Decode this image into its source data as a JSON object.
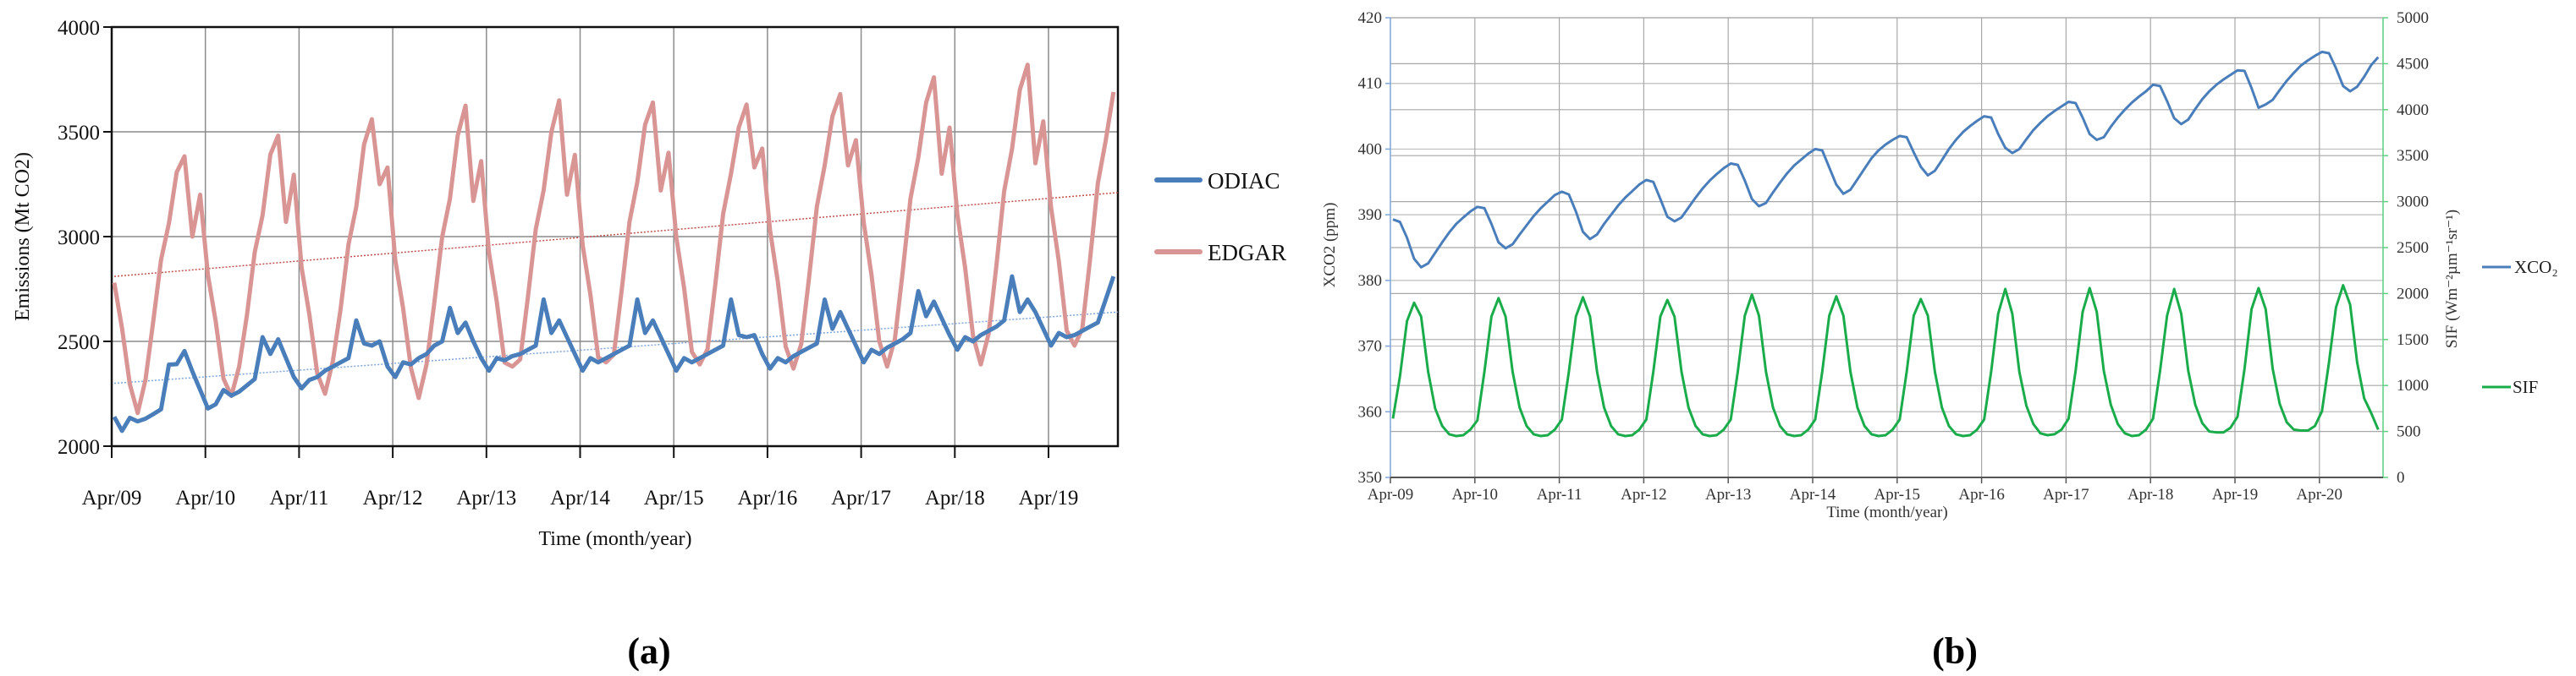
{
  "chart_data": [
    {
      "id": "a",
      "type": "line",
      "panel_label": "(a)",
      "title": "",
      "xlabel": "Time (month/year)",
      "ylabel": "Emissions (Mt CO2)",
      "ylim": [
        2000,
        4000
      ],
      "yticks": [
        2000,
        2500,
        3000,
        3500,
        4000
      ],
      "ytick_labels": [
        "2000",
        "2500",
        "3000",
        "3500",
        "4000"
      ],
      "xtick_labels": [
        "Apr/09",
        "Apr/10",
        "Apr/11",
        "Apr/12",
        "Apr/13",
        "Apr/14",
        "Apr/15",
        "Apr/16",
        "Apr/17",
        "Apr/18",
        "Apr/19"
      ],
      "x_start": "Apr 2009",
      "x_step": "1 month",
      "grid": true,
      "legend_position": "right",
      "series": [
        {
          "name": "ODIAC",
          "color": "#4a7ebb",
          "trendline": {
            "start": 2300,
            "end": 2640,
            "style": "dotted"
          },
          "values": [
            2140,
            2073,
            2135,
            2118,
            2131,
            2153,
            2176,
            2389,
            2391,
            2454,
            2357,
            2269,
            2180,
            2200,
            2268,
            2241,
            2260,
            2290,
            2320,
            2520,
            2440,
            2510,
            2420,
            2330,
            2276,
            2316,
            2330,
            2360,
            2380,
            2400,
            2420,
            2600,
            2490,
            2480,
            2500,
            2380,
            2330,
            2400,
            2390,
            2420,
            2440,
            2480,
            2500,
            2660,
            2540,
            2590,
            2500,
            2420,
            2360,
            2420,
            2410,
            2430,
            2440,
            2460,
            2480,
            2700,
            2540,
            2600,
            2520,
            2440,
            2360,
            2420,
            2400,
            2420,
            2440,
            2460,
            2480,
            2700,
            2540,
            2600,
            2520,
            2440,
            2360,
            2420,
            2400,
            2420,
            2440,
            2460,
            2480,
            2700,
            2530,
            2520,
            2530,
            2440,
            2370,
            2420,
            2400,
            2430,
            2450,
            2470,
            2490,
            2700,
            2560,
            2640,
            2560,
            2480,
            2400,
            2460,
            2440,
            2470,
            2490,
            2510,
            2540,
            2740,
            2620,
            2690,
            2610,
            2530,
            2460,
            2520,
            2500,
            2530,
            2550,
            2570,
            2600,
            2810,
            2640,
            2700,
            2640,
            2560,
            2480,
            2540,
            2520,
            2530,
            2550,
            2570,
            2590,
            2700,
            2810
          ]
        },
        {
          "name": "EDGAR",
          "color": "#d99594",
          "trendline": {
            "start": 2810,
            "end": 3210,
            "style": "dotted"
          },
          "values": [
            2780,
            2563,
            2296,
            2158,
            2316,
            2596,
            2889,
            3063,
            3307,
            3383,
            3000,
            3200,
            2816,
            2595,
            2322,
            2240,
            2380,
            2625,
            2925,
            3102,
            3392,
            3482,
            3070,
            3295,
            2852,
            2627,
            2348,
            2250,
            2405,
            2655,
            2962,
            3142,
            3440,
            3560,
            3250,
            3330,
            2888,
            2659,
            2373,
            2230,
            2389,
            2684,
            2998,
            3181,
            3483,
            3625,
            3170,
            3360,
            2924,
            2690,
            2399,
            2380,
            2414,
            2714,
            3035,
            3221,
            3500,
            3650,
            3200,
            3390,
            2960,
            2722,
            2424,
            2400,
            2438,
            2743,
            3071,
            3260,
            3534,
            3640,
            3220,
            3400,
            2996,
            2754,
            2450,
            2390,
            2463,
            2773,
            3108,
            3300,
            3520,
            3630,
            3330,
            3420,
            3032,
            2786,
            2476,
            2370,
            2487,
            2802,
            3144,
            3339,
            3575,
            3680,
            3340,
            3460,
            3068,
            2818,
            2501,
            2380,
            2512,
            2832,
            3181,
            3379,
            3640,
            3760,
            3300,
            3520,
            3104,
            2850,
            2527,
            2390,
            2536,
            2861,
            3217,
            3418,
            3700,
            3820,
            3350,
            3550,
            3140,
            2882,
            2552,
            2480,
            2561,
            2891,
            3254,
            3458,
            3690
          ]
        }
      ]
    },
    {
      "id": "b",
      "type": "line",
      "panel_label": "(b)",
      "title": "",
      "xlabel": "Time (month/year)",
      "ylabel_left": "XCO2 (ppm)",
      "ylabel_right": "SIF (Wm⁻²µm⁻¹sr⁻¹)",
      "ylim_left": [
        350,
        420
      ],
      "ylim_right": [
        0,
        5000
      ],
      "yticks_left": [
        350,
        360,
        370,
        380,
        390,
        400,
        410,
        420
      ],
      "ytick_labels_left": [
        "350",
        "360",
        "370",
        "380",
        "390",
        "400",
        "410",
        "420"
      ],
      "yticks_right": [
        0,
        500,
        1000,
        1500,
        2000,
        2500,
        3000,
        3500,
        4000,
        4500,
        5000
      ],
      "ytick_labels_right": [
        "0",
        "500",
        "1000",
        "1500",
        "2000",
        "2500",
        "3000",
        "3500",
        "4000",
        "4500",
        "5000"
      ],
      "xtick_labels": [
        "Apr-09",
        "Apr-10",
        "Apr-11",
        "Apr-12",
        "Apr-13",
        "Apr-14",
        "Apr-15",
        "Apr-16",
        "Apr-17",
        "Apr-18",
        "Apr-19",
        "Apr-20"
      ],
      "x_start": "Apr 2009",
      "x_step": "1 month",
      "grid": true,
      "legend_position": "right",
      "series": [
        {
          "name": "XCO2",
          "legend_label": "XCO₂",
          "axis": "left",
          "color": "#4a7ebb",
          "values": [
            389.3,
            388.9,
            386.5,
            383.3,
            382.0,
            382.6,
            384.2,
            385.8,
            387.3,
            388.6,
            389.6,
            390.5,
            391.2,
            391.0,
            388.6,
            385.8,
            384.9,
            385.5,
            387.0,
            388.4,
            389.8,
            391.0,
            392.0,
            393.0,
            393.5,
            393.1,
            390.5,
            387.4,
            386.3,
            387.0,
            388.6,
            390.0,
            391.4,
            392.6,
            393.6,
            394.6,
            395.3,
            395.0,
            392.4,
            389.7,
            389.0,
            389.6,
            391.1,
            392.6,
            394.0,
            395.2,
            396.2,
            397.1,
            397.8,
            397.6,
            395.2,
            392.4,
            391.3,
            391.8,
            393.4,
            394.9,
            396.3,
            397.5,
            398.4,
            399.3,
            400.0,
            399.8,
            397.2,
            394.6,
            393.2,
            393.8,
            395.4,
            397.0,
            398.6,
            399.8,
            400.7,
            401.4,
            402.0,
            401.8,
            399.5,
            397.3,
            396.0,
            396.7,
            398.3,
            400.0,
            401.4,
            402.6,
            403.5,
            404.3,
            405.0,
            404.8,
            402.3,
            400.2,
            399.4,
            400.0,
            401.5,
            402.9,
            404.0,
            405.0,
            405.8,
            406.5,
            407.2,
            407.0,
            404.8,
            402.3,
            401.4,
            401.8,
            403.4,
            404.8,
            406.0,
            407.1,
            408.0,
            408.8,
            409.8,
            409.6,
            407.3,
            404.7,
            403.8,
            404.5,
            406.1,
            407.6,
            408.8,
            409.8,
            410.6,
            411.3,
            412.0,
            411.9,
            409.3,
            406.3,
            406.8,
            407.5,
            409.0,
            410.4,
            411.6,
            412.7,
            413.5,
            414.2,
            414.8,
            414.6,
            412.3,
            409.6,
            408.8,
            409.5,
            411.0,
            412.8,
            414.0
          ]
        },
        {
          "name": "SIF",
          "legend_label": "SIF",
          "axis": "right",
          "color": "#1aac4a",
          "values": [
            640,
            1100,
            1700,
            1900,
            1750,
            1150,
            750,
            560,
            470,
            450,
            460,
            520,
            620,
            1150,
            1750,
            1950,
            1750,
            1150,
            760,
            560,
            470,
            450,
            460,
            520,
            630,
            1150,
            1750,
            1960,
            1750,
            1150,
            760,
            560,
            470,
            450,
            460,
            520,
            630,
            1150,
            1750,
            1930,
            1750,
            1150,
            760,
            560,
            470,
            450,
            460,
            520,
            630,
            1150,
            1760,
            1990,
            1760,
            1150,
            760,
            560,
            470,
            450,
            460,
            520,
            630,
            1150,
            1760,
            1970,
            1760,
            1150,
            760,
            560,
            470,
            450,
            460,
            520,
            630,
            1150,
            1760,
            1940,
            1760,
            1150,
            760,
            560,
            470,
            450,
            460,
            520,
            630,
            1150,
            1780,
            2050,
            1780,
            1150,
            780,
            580,
            480,
            460,
            470,
            520,
            640,
            1160,
            1800,
            2060,
            1800,
            1160,
            790,
            580,
            480,
            450,
            460,
            520,
            640,
            1160,
            1760,
            2050,
            1780,
            1160,
            790,
            590,
            500,
            490,
            490,
            540,
            660,
            1180,
            1830,
            2060,
            1830,
            1180,
            800,
            600,
            520,
            510,
            510,
            560,
            720,
            1250,
            1850,
            2090,
            1880,
            1250,
            860,
            700,
            520
          ]
        }
      ]
    }
  ],
  "figure": {
    "panel_a_label": "(a)",
    "panel_b_label": "(b)"
  }
}
